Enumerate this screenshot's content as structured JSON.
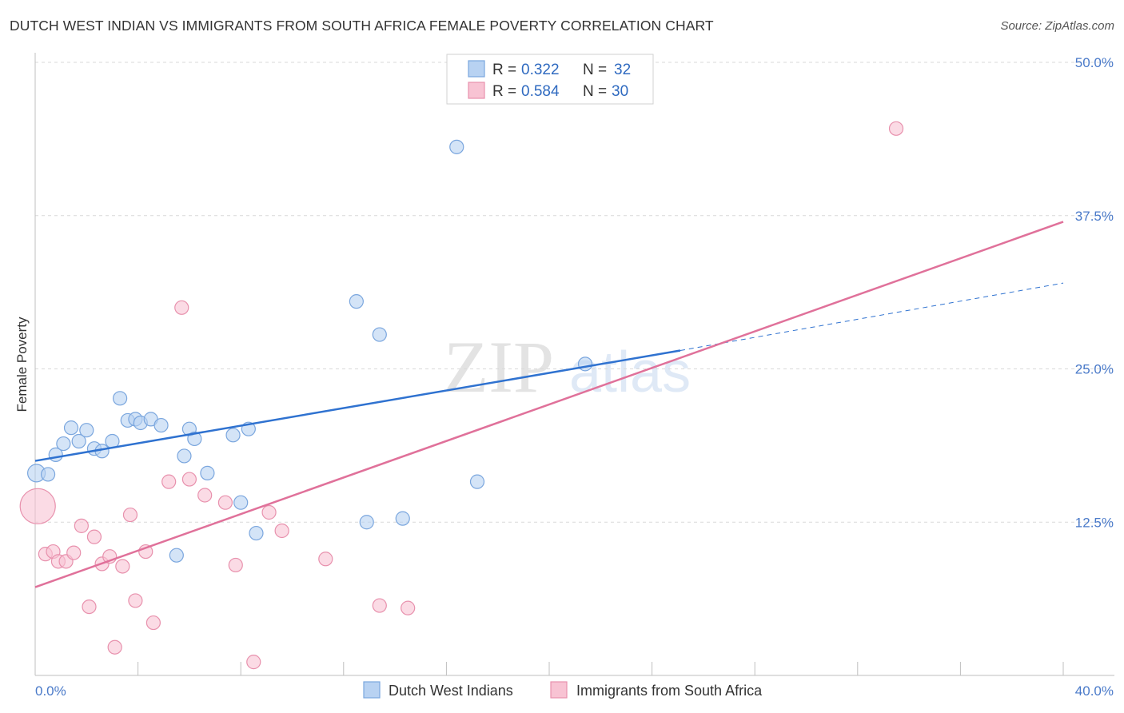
{
  "title": "DUTCH WEST INDIAN VS IMMIGRANTS FROM SOUTH AFRICA FEMALE POVERTY CORRELATION CHART",
  "source": "Source: ZipAtlas.com",
  "watermark": {
    "zip": "ZIP",
    "atlas": "atlas"
  },
  "legend": {
    "r_label": "R =",
    "n_label": "N =",
    "rows": [
      {
        "r": "0.322",
        "n": "32"
      },
      {
        "r": "0.584",
        "n": "30"
      }
    ]
  },
  "colors": {
    "blue_fill": "#b8d2f2",
    "blue_stroke": "#7aa6de",
    "blue_line": "#2f72d0",
    "pink_fill": "#f8c3d3",
    "pink_stroke": "#e891ad",
    "pink_line": "#e0719a",
    "grid": "#d9d9d9",
    "tick_text": "#4a7ac9"
  },
  "chart_data": {
    "type": "scatter",
    "title": "DUTCH WEST INDIAN VS IMMIGRANTS FROM SOUTH AFRICA FEMALE POVERTY CORRELATION CHART",
    "xlabel": "",
    "ylabel": "Female Poverty",
    "xlim": [
      0,
      40
    ],
    "ylim": [
      0,
      50
    ],
    "x_tick_labels": [
      "0.0%",
      "40.0%"
    ],
    "y_ticks": [
      12.5,
      25.0,
      37.5,
      50.0
    ],
    "y_tick_labels": [
      "12.5%",
      "25.0%",
      "37.5%",
      "50.0%"
    ],
    "grid": true,
    "legend_position": "top-center",
    "series": [
      {
        "name": "Dutch West Indians",
        "r": 0.322,
        "n": 32,
        "trend": {
          "x0": 0,
          "y0": 17.5,
          "x1": 25.1,
          "y1": 26.5,
          "dash_to_x": 40,
          "dash_to_y": 32.0
        },
        "points": [
          [
            0.05,
            16.5
          ],
          [
            0.5,
            16.4
          ],
          [
            0.8,
            18.0
          ],
          [
            1.1,
            18.9
          ],
          [
            1.4,
            20.2
          ],
          [
            1.7,
            19.1
          ],
          [
            2.0,
            20.0
          ],
          [
            2.3,
            18.5
          ],
          [
            2.6,
            18.3
          ],
          [
            3.0,
            19.1
          ],
          [
            3.3,
            22.6
          ],
          [
            3.6,
            20.8
          ],
          [
            3.9,
            20.9
          ],
          [
            4.1,
            20.6
          ],
          [
            4.5,
            20.9
          ],
          [
            4.9,
            20.4
          ],
          [
            5.5,
            9.8
          ],
          [
            5.8,
            17.9
          ],
          [
            6.0,
            20.1
          ],
          [
            6.2,
            19.3
          ],
          [
            6.7,
            16.5
          ],
          [
            7.7,
            19.6
          ],
          [
            8.0,
            14.1
          ],
          [
            8.3,
            20.1
          ],
          [
            8.6,
            11.6
          ],
          [
            12.5,
            30.5
          ],
          [
            12.9,
            12.5
          ],
          [
            13.4,
            27.8
          ],
          [
            14.3,
            12.8
          ],
          [
            16.4,
            43.1
          ],
          [
            17.2,
            15.8
          ],
          [
            21.4,
            25.4
          ]
        ]
      },
      {
        "name": "Immigrants from South Africa",
        "r": 0.584,
        "n": 30,
        "trend": {
          "x0": 0,
          "y0": 7.2,
          "x1": 40,
          "y1": 37.0
        },
        "points": [
          [
            0.1,
            13.8
          ],
          [
            0.4,
            9.9
          ],
          [
            0.7,
            10.1
          ],
          [
            0.9,
            9.3
          ],
          [
            1.2,
            9.3
          ],
          [
            1.5,
            10.0
          ],
          [
            1.8,
            12.2
          ],
          [
            2.1,
            5.6
          ],
          [
            2.3,
            11.3
          ],
          [
            2.6,
            9.1
          ],
          [
            2.9,
            9.7
          ],
          [
            3.1,
            2.3
          ],
          [
            3.4,
            8.9
          ],
          [
            3.7,
            13.1
          ],
          [
            3.9,
            6.1
          ],
          [
            4.3,
            10.1
          ],
          [
            4.6,
            4.3
          ],
          [
            5.2,
            15.8
          ],
          [
            5.7,
            30.0
          ],
          [
            6.0,
            16.0
          ],
          [
            6.6,
            14.7
          ],
          [
            7.4,
            14.1
          ],
          [
            7.8,
            9.0
          ],
          [
            8.5,
            1.1
          ],
          [
            9.1,
            13.3
          ],
          [
            9.6,
            11.8
          ],
          [
            11.3,
            9.5
          ],
          [
            13.4,
            5.7
          ],
          [
            14.5,
            5.5
          ],
          [
            33.5,
            44.6
          ]
        ]
      }
    ]
  }
}
